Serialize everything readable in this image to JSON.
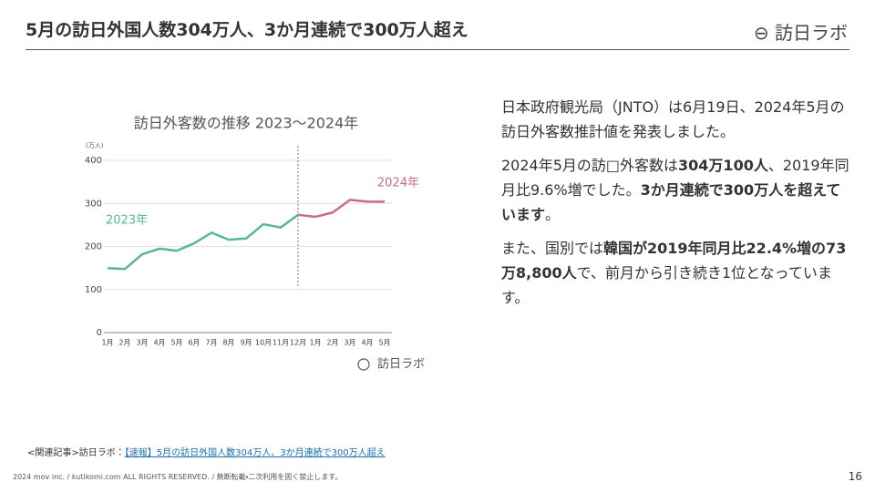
{
  "header": {
    "title": "5月の訪日外国人数304万人、3か月連続で300万人超え",
    "logo": "訪日ラボ"
  },
  "chart_data": {
    "type": "line",
    "title": "訪日外客数の推移 2023〜2024年",
    "unit": "(万人)",
    "categories": [
      "1月",
      "2月",
      "3月",
      "4月",
      "5月",
      "6月",
      "7月",
      "8月",
      "9月",
      "10月",
      "11月",
      "12月",
      "1月",
      "2月",
      "3月",
      "4月",
      "5月"
    ],
    "series": [
      {
        "name": "2023年",
        "color": "#5bb597",
        "values": [
          149.7,
          147.5,
          181.8,
          194.9,
          189.9,
          207.3,
          232.0,
          215.6,
          218.4,
          251.7,
          244.1,
          273.4,
          null,
          null,
          null,
          null,
          null
        ]
      },
      {
        "name": "2024年",
        "color": "#c96a8e",
        "values": [
          null,
          null,
          null,
          null,
          null,
          null,
          null,
          null,
          null,
          null,
          null,
          null,
          268.8,
          278.8,
          308.2,
          304.3,
          304.0
        ]
      }
    ],
    "ylim": [
      0,
      400
    ],
    "yticks": [
      0,
      100,
      200,
      300,
      400
    ],
    "grid": true,
    "logo": "訪日ラボ"
  },
  "paragraphs": [
    [
      {
        "text": "日本政府観光局（JNTO）は6月19日、2024年5月の訪日外客数推計値を発表しました。",
        "bold": false
      }
    ],
    [
      {
        "text": "2024年5月の訪□外客数は",
        "bold": false
      },
      {
        "text": "304万100人",
        "bold": true
      },
      {
        "text": "、2019年同月比9.6%増でした。",
        "bold": false
      },
      {
        "text": "3か月連続で300万人を超えています",
        "bold": true
      },
      {
        "text": "。",
        "bold": false
      }
    ],
    [
      {
        "text": "また、国別では",
        "bold": false
      },
      {
        "text": "韓国が2019年同月比22.4%増の73万8,800人",
        "bold": true
      },
      {
        "text": "で、前月から引き続き1位となっています。",
        "bold": false
      }
    ]
  ],
  "related": {
    "label": "<関連記事>訪日ラボ：",
    "link": "【速報】5月の訪日外国人数304万人、3か月連続で300万人超え"
  },
  "footer": {
    "copyright": "2024 mov inc. / kutikomi.com ALL RIGHTS RESERVED. / 無断転載・二次利用を固く禁止します。",
    "page": "16"
  }
}
